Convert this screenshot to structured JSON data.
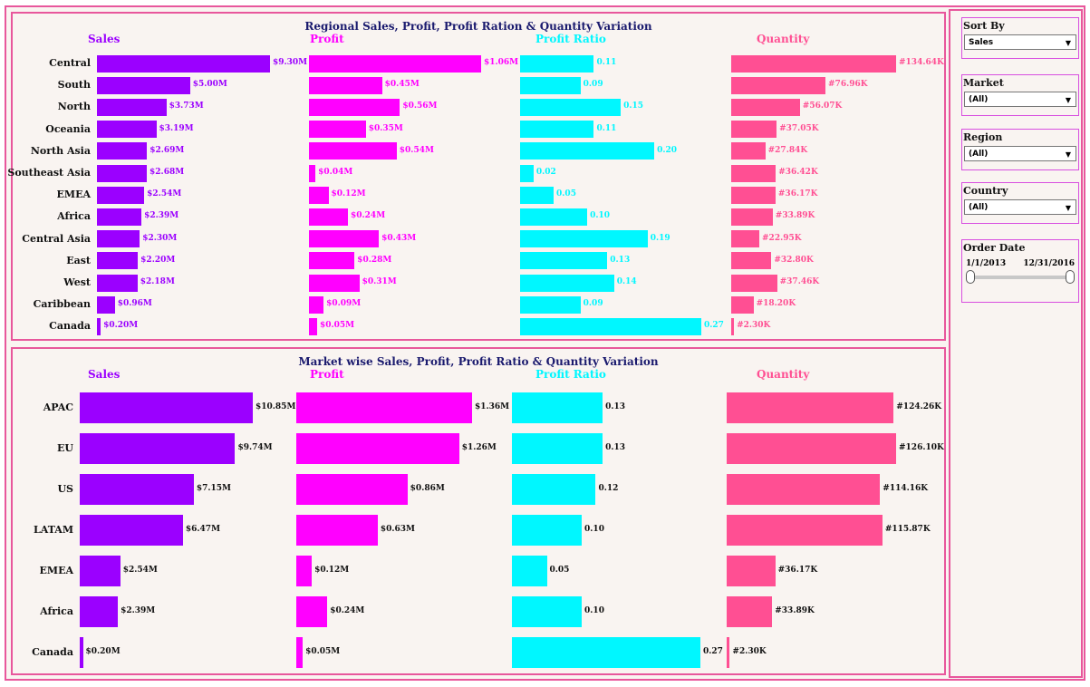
{
  "regional": {
    "title": "Regional Sales, Profit, Profit Ration & Quantity Variation",
    "headers": {
      "sales": "Sales",
      "profit": "Profit",
      "ratio": "Profit Ratio",
      "quantity": "Quantity"
    }
  },
  "market": {
    "title": "Market wise Sales, Profit, Profit Ratio & Quantity Variation",
    "headers": {
      "sales": "Sales",
      "profit": "Profit",
      "ratio": "Profit Ratio",
      "quantity": "Quantity"
    }
  },
  "colors": {
    "sales": "#9b00ff",
    "profit": "#ff00ff",
    "ratio": "#00f7ff",
    "quantity": "#ff4f93",
    "border": "#e8579c",
    "title": "#1a1a6e"
  },
  "filters": {
    "sort_by": {
      "title": "Sort By",
      "value": "Sales"
    },
    "market": {
      "title": "Market",
      "value": "(All)"
    },
    "region": {
      "title": "Region",
      "value": "(All)"
    },
    "country": {
      "title": "Country",
      "value": "(All)"
    },
    "order_date": {
      "title": "Order Date",
      "start": "1/1/2013",
      "end": "12/31/2016"
    }
  },
  "chart_data": [
    {
      "type": "bar",
      "title": "Regional Sales, Profit, Profit Ration & Quantity Variation",
      "categories": [
        "Central",
        "South",
        "North",
        "Oceania",
        "North Asia",
        "Southeast Asia",
        "EMEA",
        "Africa",
        "Central Asia",
        "East",
        "West",
        "Caribbean",
        "Canada"
      ],
      "series": [
        {
          "name": "Sales",
          "values": [
            9.3,
            5.0,
            3.73,
            3.19,
            2.69,
            2.68,
            2.54,
            2.39,
            2.3,
            2.2,
            2.18,
            0.96,
            0.2
          ],
          "labels": [
            "$9.30M",
            "$5.00M",
            "$3.73M",
            "$3.19M",
            "$2.69M",
            "$2.68M",
            "$2.54M",
            "$2.39M",
            "$2.30M",
            "$2.20M",
            "$2.18M",
            "$0.96M",
            "$0.20M"
          ]
        },
        {
          "name": "Profit",
          "values": [
            1.06,
            0.45,
            0.56,
            0.35,
            0.54,
            0.04,
            0.12,
            0.24,
            0.43,
            0.28,
            0.31,
            0.09,
            0.05
          ],
          "labels": [
            "$1.06M",
            "$0.45M",
            "$0.56M",
            "$0.35M",
            "$0.54M",
            "$0.04M",
            "$0.12M",
            "$0.24M",
            "$0.43M",
            "$0.28M",
            "$0.31M",
            "$0.09M",
            "$0.05M"
          ]
        },
        {
          "name": "Profit Ratio",
          "values": [
            0.11,
            0.09,
            0.15,
            0.11,
            0.2,
            0.02,
            0.05,
            0.1,
            0.19,
            0.13,
            0.14,
            0.09,
            0.27
          ],
          "labels": [
            "0.11",
            "0.09",
            "0.15",
            "0.11",
            "0.20",
            "0.02",
            "0.05",
            "0.10",
            "0.19",
            "0.13",
            "0.14",
            "0.09",
            "0.27"
          ]
        },
        {
          "name": "Quantity",
          "values": [
            134.64,
            76.96,
            56.07,
            37.05,
            27.84,
            36.42,
            36.17,
            33.89,
            22.95,
            32.8,
            37.46,
            18.2,
            2.3
          ],
          "labels": [
            "#134.64K",
            "#76.96K",
            "#56.07K",
            "#37.05K",
            "#27.84K",
            "#36.42K",
            "#36.17K",
            "#33.89K",
            "#22.95K",
            "#32.80K",
            "#37.46K",
            "#18.20K",
            "#2.30K"
          ]
        }
      ]
    },
    {
      "type": "bar",
      "title": "Market wise Sales, Profit, Profit Ratio & Quantity Variation",
      "categories": [
        "APAC",
        "EU",
        "US",
        "LATAM",
        "EMEA",
        "Africa",
        "Canada"
      ],
      "series": [
        {
          "name": "Sales",
          "values": [
            10.85,
            9.74,
            7.15,
            6.47,
            2.54,
            2.39,
            0.2
          ],
          "labels": [
            "$10.85M",
            "$9.74M",
            "$7.15M",
            "$6.47M",
            "$2.54M",
            "$2.39M",
            "$0.20M"
          ]
        },
        {
          "name": "Profit",
          "values": [
            1.36,
            1.26,
            0.86,
            0.63,
            0.12,
            0.24,
            0.05
          ],
          "labels": [
            "$1.36M",
            "$1.26M",
            "$0.86M",
            "$0.63M",
            "$0.12M",
            "$0.24M",
            "$0.05M"
          ]
        },
        {
          "name": "Profit Ratio",
          "values": [
            0.13,
            0.13,
            0.12,
            0.1,
            0.05,
            0.1,
            0.27
          ],
          "labels": [
            "0.13",
            "0.13",
            "0.12",
            "0.10",
            "0.05",
            "0.10",
            "0.27"
          ]
        },
        {
          "name": "Quantity",
          "values": [
            124.26,
            126.1,
            114.16,
            115.87,
            36.17,
            33.89,
            2.3
          ],
          "labels": [
            "#124.26K",
            "#126.10K",
            "#114.16K",
            "#115.87K",
            "#36.17K",
            "#33.89K",
            "#2.30K"
          ]
        }
      ]
    }
  ]
}
